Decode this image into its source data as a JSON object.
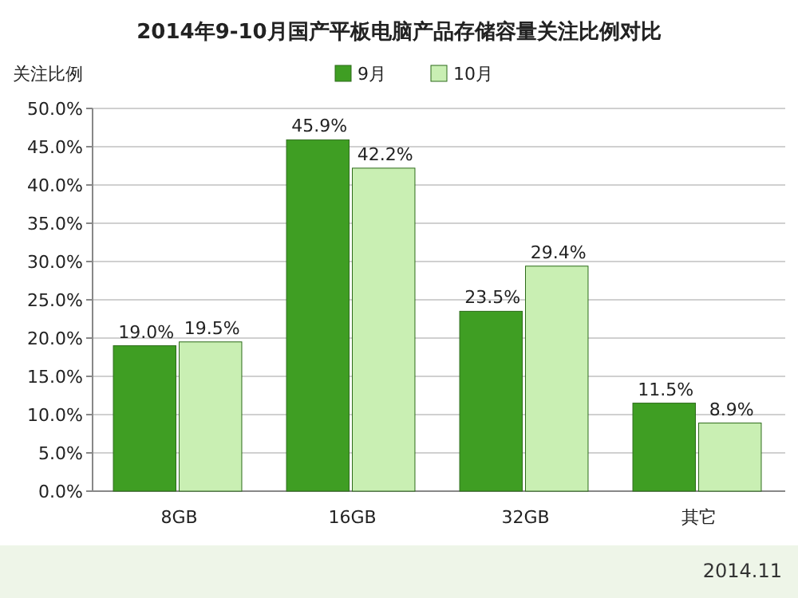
{
  "chart_data": {
    "type": "bar",
    "title": "2014年9-10月国产平板电脑产品存储容量关注比例对比",
    "ylabel": "关注比例",
    "categories": [
      "8GB",
      "16GB",
      "32GB",
      "其它"
    ],
    "series": [
      {
        "name": "9月",
        "color": "#3f9e23",
        "values": [
          19.0,
          45.9,
          23.5,
          11.5
        ],
        "value_labels": [
          "19.0%",
          "45.9%",
          "23.5%",
          "11.5%"
        ]
      },
      {
        "name": "10月",
        "color": "#c9efb3",
        "values": [
          19.5,
          42.2,
          29.4,
          8.9
        ],
        "value_labels": [
          "19.5%",
          "42.2%",
          "29.4%",
          "8.9%"
        ]
      }
    ],
    "ylim": [
      0,
      50
    ],
    "yticks": [
      {
        "value": 0,
        "label": "0.0%"
      },
      {
        "value": 5,
        "label": "5.0%"
      },
      {
        "value": 10,
        "label": "10.0%"
      },
      {
        "value": 15,
        "label": "15.0%"
      },
      {
        "value": 20,
        "label": "20.0%"
      },
      {
        "value": 25,
        "label": "25.0%"
      },
      {
        "value": 30,
        "label": "30.0%"
      },
      {
        "value": 35,
        "label": "35.0%"
      },
      {
        "value": 40,
        "label": "40.0%"
      },
      {
        "value": 45,
        "label": "45.0%"
      },
      {
        "value": 50,
        "label": "50.0%"
      }
    ],
    "grid": "y",
    "legend": "top",
    "annotations": [
      "2014.11"
    ]
  }
}
